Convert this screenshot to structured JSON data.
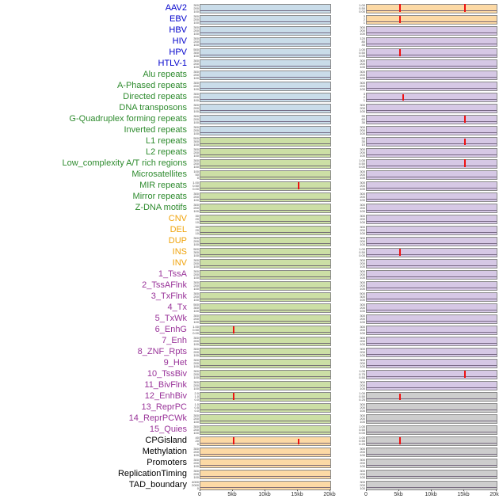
{
  "chart_data": {
    "type": "line",
    "title": "",
    "description": "Small-multiple genomic feature tracks over a 0-20kb window; two panel columns per track; red vertical lines mark peaks",
    "x_axis": {
      "ticks": [
        "0",
        "5kb",
        "10kb",
        "15kb",
        "20kb"
      ],
      "range_kb": [
        0,
        20
      ]
    },
    "palette": {
      "label_colors": {
        "virus": "#0000cc",
        "repeat": "#2e8b2e",
        "sv": "#f0a30a",
        "state": "#993399",
        "other": "#000000"
      },
      "panel_colors": {
        "blue": "#c9dcE9",
        "green": "#ccdfa5",
        "orange": "#fcd9a5",
        "purple": "#d6c8e5",
        "gray": "#cdcdcd"
      },
      "spike_color": "#ee1111",
      "baseline_color": "#5a4a66"
    },
    "tracks": [
      {
        "l": "AAV2",
        "g": "virus",
        "pb": "blue",
        "qb": "orange",
        "pt": [
          "300",
          "200",
          "100"
        ],
        "qt": [
          "1.00",
          "0.50",
          "0.00"
        ],
        "ps": [],
        "qs": [
          [
            5,
            0.95
          ],
          [
            15,
            0.95
          ]
        ]
      },
      {
        "l": "EBV",
        "g": "virus",
        "pb": "blue",
        "qb": "orange",
        "pt": [
          "300",
          "200",
          "100"
        ],
        "qt": [
          "3",
          "2",
          "1"
        ],
        "ps": [],
        "qs": [
          [
            5,
            0.9
          ]
        ]
      },
      {
        "l": "HBV",
        "g": "virus",
        "pb": "blue",
        "qb": "purple",
        "pt": [
          "300",
          "200",
          "100"
        ],
        "qt": [
          "300",
          "200",
          "100"
        ],
        "ps": [],
        "qs": []
      },
      {
        "l": "HIV",
        "g": "virus",
        "pb": "blue",
        "qb": "purple",
        "pt": [
          "300",
          "200",
          "100"
        ],
        "qt": [
          "120",
          "80",
          "40"
        ],
        "ps": [],
        "qs": []
      },
      {
        "l": "HPV",
        "g": "virus",
        "pb": "blue",
        "qb": "purple",
        "pt": [
          "500",
          "300",
          "100"
        ],
        "qt": [
          "1.00",
          "0.50",
          "0.00"
        ],
        "ps": [],
        "qs": [
          [
            5,
            0.85
          ]
        ]
      },
      {
        "l": "HTLV-1",
        "g": "virus",
        "pb": "blue",
        "qb": "purple",
        "pt": [
          "300",
          "200",
          "100"
        ],
        "qt": [
          "300",
          "200",
          "100"
        ],
        "ps": [],
        "qs": []
      },
      {
        "l": "Alu repeats",
        "g": "repeat",
        "pb": "blue",
        "qb": "purple",
        "pt": [
          "300",
          "200",
          "100"
        ],
        "qt": [
          "300",
          "200",
          "100"
        ],
        "ps": [],
        "qs": []
      },
      {
        "l": "A-Phased repeats",
        "g": "repeat",
        "pb": "blue",
        "qb": "purple",
        "pt": [
          "300",
          "200",
          "100"
        ],
        "qt": [
          "300",
          "200",
          "100"
        ],
        "ps": [],
        "qs": []
      },
      {
        "l": "Directed repeats",
        "g": "repeat",
        "pb": "blue",
        "qb": "purple",
        "pt": [
          "300",
          "200",
          "100"
        ],
        "qt": [
          "3",
          "2",
          "1"
        ],
        "ps": [],
        "qs": [
          [
            5.5,
            0.8
          ]
        ]
      },
      {
        "l": "DNA transposons",
        "g": "repeat",
        "pb": "blue",
        "qb": "purple",
        "pt": [
          "300",
          "200",
          "100"
        ],
        "qt": [
          "300",
          "200",
          "100"
        ],
        "ps": [],
        "qs": []
      },
      {
        "l": "G-Quadruplex forming repeats",
        "g": "repeat",
        "pb": "blue",
        "qb": "purple",
        "pt": [
          "300",
          "200",
          "100"
        ],
        "qt": [
          "90",
          "60",
          "30"
        ],
        "ps": [],
        "qs": [
          [
            15,
            0.9
          ]
        ]
      },
      {
        "l": "Inverted repeats",
        "g": "repeat",
        "pb": "blue",
        "qb": "purple",
        "pt": [
          "300",
          "200",
          "100"
        ],
        "qt": [
          "300",
          "200",
          "100"
        ],
        "ps": [],
        "qs": []
      },
      {
        "l": "L1 repeats",
        "g": "repeat",
        "pb": "green",
        "qb": "purple",
        "pt": [
          "500",
          "300",
          "100"
        ],
        "qt": [
          "50",
          "30",
          "10"
        ],
        "ps": [],
        "qs": [
          [
            15,
            0.75
          ]
        ]
      },
      {
        "l": "L2 repeats",
        "g": "repeat",
        "pb": "green",
        "qb": "purple",
        "pt": [
          "300",
          "200",
          "100"
        ],
        "qt": [
          "300",
          "200",
          "100"
        ],
        "ps": [],
        "qs": []
      },
      {
        "l": "Low_complexity A/T rich regions",
        "g": "repeat",
        "pb": "green",
        "qb": "purple",
        "pt": [
          "300",
          "200",
          "100"
        ],
        "qt": [
          "1.00",
          "0.50",
          "0.00"
        ],
        "ps": [],
        "qs": [
          [
            15,
            0.95
          ]
        ]
      },
      {
        "l": "Microsatellites",
        "g": "repeat",
        "pb": "green",
        "qb": "purple",
        "pt": [
          "100",
          "50",
          "0"
        ],
        "qt": [
          "300",
          "200",
          "100"
        ],
        "ps": [],
        "qs": []
      },
      {
        "l": "MIR repeats",
        "g": "repeat",
        "pb": "green",
        "qb": "purple",
        "pt": [
          "1.00",
          "0.50",
          "0.00"
        ],
        "qt": [
          "300",
          "200",
          "100"
        ],
        "ps": [
          [
            15,
            0.9
          ]
        ],
        "qs": []
      },
      {
        "l": "Mirror repeats",
        "g": "repeat",
        "pb": "green",
        "qb": "purple",
        "pt": [
          "300",
          "200",
          "100"
        ],
        "qt": [
          "300",
          "200",
          "100"
        ],
        "ps": [],
        "qs": []
      },
      {
        "l": "Z-DNA motifs",
        "g": "repeat",
        "pb": "green",
        "qb": "purple",
        "pt": [
          "300",
          "200",
          "100"
        ],
        "qt": [
          "300",
          "200",
          "100"
        ],
        "ps": [],
        "qs": []
      },
      {
        "l": "CNV",
        "g": "sv",
        "pb": "green",
        "qb": "purple",
        "pt": [
          "30",
          "20",
          "10"
        ],
        "qt": [
          "300",
          "200",
          "100"
        ],
        "ps": [],
        "qs": []
      },
      {
        "l": "DEL",
        "g": "sv",
        "pb": "green",
        "qb": "purple",
        "pt": [
          "30",
          "20",
          "10"
        ],
        "qt": [
          "300",
          "200",
          "100"
        ],
        "ps": [],
        "qs": []
      },
      {
        "l": "DUP",
        "g": "sv",
        "pb": "green",
        "qb": "purple",
        "pt": [
          "300",
          "200",
          "100"
        ],
        "qt": [
          "300",
          "200",
          "100"
        ],
        "ps": [],
        "qs": []
      },
      {
        "l": "INS",
        "g": "sv",
        "pb": "green",
        "qb": "purple",
        "pt": [
          "500",
          "300",
          "100"
        ],
        "qt": [
          "1.00",
          "0.50",
          "0.00"
        ],
        "ps": [],
        "qs": [
          [
            5,
            0.85
          ]
        ]
      },
      {
        "l": "INV",
        "g": "sv",
        "pb": "green",
        "qb": "purple",
        "pt": [
          "300",
          "200",
          "100"
        ],
        "qt": [
          "300",
          "200",
          "100"
        ],
        "ps": [],
        "qs": []
      },
      {
        "l": "1_TssA",
        "g": "state",
        "pb": "green",
        "qb": "purple",
        "pt": [
          "300",
          "200",
          "100"
        ],
        "qt": [
          "300",
          "200",
          "100"
        ],
        "ps": [],
        "qs": []
      },
      {
        "l": "2_TssAFlnk",
        "g": "state",
        "pb": "green",
        "qb": "purple",
        "pt": [
          "300",
          "200",
          "100"
        ],
        "qt": [
          "300",
          "200",
          "100"
        ],
        "ps": [],
        "qs": []
      },
      {
        "l": "3_TxFlnk",
        "g": "state",
        "pb": "green",
        "qb": "purple",
        "pt": [
          "300",
          "200",
          "100"
        ],
        "qt": [
          "500",
          "300",
          "100"
        ],
        "ps": [],
        "qs": []
      },
      {
        "l": "4_Tx",
        "g": "state",
        "pb": "green",
        "qb": "purple",
        "pt": [
          "500",
          "300",
          "100"
        ],
        "qt": [
          "300",
          "200",
          "100"
        ],
        "ps": [],
        "qs": []
      },
      {
        "l": "5_TxWk",
        "g": "state",
        "pb": "green",
        "qb": "purple",
        "pt": [
          "300",
          "200",
          "100"
        ],
        "qt": [
          "300",
          "200",
          "100"
        ],
        "ps": [],
        "qs": []
      },
      {
        "l": "6_EnhG",
        "g": "state",
        "pb": "green",
        "qb": "purple",
        "pt": [
          "1.00",
          "0.50",
          "0.00"
        ],
        "qt": [
          "300",
          "200",
          "100"
        ],
        "ps": [
          [
            5,
            0.9
          ]
        ],
        "qs": []
      },
      {
        "l": "7_Enh",
        "g": "state",
        "pb": "green",
        "qb": "purple",
        "pt": [
          "300",
          "200",
          "100"
        ],
        "qt": [
          "300",
          "200",
          "100"
        ],
        "ps": [],
        "qs": []
      },
      {
        "l": "8_ZNF_Rpts",
        "g": "state",
        "pb": "green",
        "qb": "purple",
        "pt": [
          "300",
          "200",
          "100"
        ],
        "qt": [
          "300",
          "200",
          "100"
        ],
        "ps": [],
        "qs": []
      },
      {
        "l": "9_Het",
        "g": "state",
        "pb": "green",
        "qb": "purple",
        "pt": [
          "300",
          "200",
          "100"
        ],
        "qt": [
          "300",
          "200",
          "100"
        ],
        "ps": [],
        "qs": []
      },
      {
        "l": "10_TssBiv",
        "g": "state",
        "pb": "green",
        "qb": "purple",
        "pt": [
          "300",
          "200",
          "100"
        ],
        "qt": [
          "1.00",
          "0.75",
          "0.50"
        ],
        "ps": [],
        "qs": [
          [
            15,
            0.85
          ]
        ]
      },
      {
        "l": "11_BivFlnk",
        "g": "state",
        "pb": "green",
        "qb": "purple",
        "pt": [
          "300",
          "200",
          "100"
        ],
        "qt": [
          "300",
          "200",
          "100"
        ],
        "ps": [],
        "qs": []
      },
      {
        "l": "12_EnhBiv",
        "g": "state",
        "pb": "green",
        "qb": "gray",
        "pt": [
          "2.0",
          "1.0",
          "0.0"
        ],
        "qt": [
          "1.00",
          "0.50",
          "0.25"
        ],
        "ps": [
          [
            5,
            0.85
          ]
        ],
        "qs": [
          [
            5,
            0.8
          ]
        ]
      },
      {
        "l": "13_ReprPC",
        "g": "state",
        "pb": "green",
        "qb": "gray",
        "pt": [
          "1.0",
          "0.5",
          "0.0"
        ],
        "qt": [
          "300",
          "200",
          "100"
        ],
        "ps": [],
        "qs": []
      },
      {
        "l": "14_ReprPCWk",
        "g": "state",
        "pb": "green",
        "qb": "gray",
        "pt": [
          "300",
          "200",
          "100"
        ],
        "qt": [
          "300",
          "200",
          "100"
        ],
        "ps": [],
        "qs": []
      },
      {
        "l": "15_Quies",
        "g": "state",
        "pb": "green",
        "qb": "gray",
        "pt": [
          "300",
          "200",
          "100"
        ],
        "qt": [
          "1.00",
          "0.50",
          "0.00"
        ],
        "ps": [],
        "qs": []
      },
      {
        "l": "CPGisland",
        "g": "other",
        "pb": "orange",
        "qb": "gray",
        "pt": [
          "40",
          "20",
          "0"
        ],
        "qt": [
          "1.00",
          "0.50",
          "0.25"
        ],
        "ps": [
          [
            5,
            0.9
          ],
          [
            15,
            0.7
          ]
        ],
        "qs": [
          [
            5,
            0.85
          ]
        ]
      },
      {
        "l": "Methylation",
        "g": "other",
        "pb": "orange",
        "qb": "gray",
        "pt": [
          "300",
          "200",
          "100"
        ],
        "qt": [
          "300",
          "200",
          "100"
        ],
        "ps": [],
        "qs": []
      },
      {
        "l": "Promoters",
        "g": "other",
        "pb": "orange",
        "qb": "gray",
        "pt": [
          "300",
          "200",
          "100"
        ],
        "qt": [
          "300",
          "200",
          "100"
        ],
        "ps": [],
        "qs": []
      },
      {
        "l": "ReplicationTiming",
        "g": "other",
        "pb": "orange",
        "qb": "gray",
        "pt": [
          "300",
          "200",
          "100"
        ],
        "qt": [
          "300",
          "200",
          "100"
        ],
        "ps": [],
        "qs": []
      },
      {
        "l": "TAD_boundary",
        "g": "other",
        "pb": "orange",
        "qb": "gray",
        "pt": [
          "4000",
          "2000",
          "0"
        ],
        "qt": [
          "300",
          "200",
          "100"
        ],
        "ps": [],
        "qs": []
      }
    ]
  }
}
